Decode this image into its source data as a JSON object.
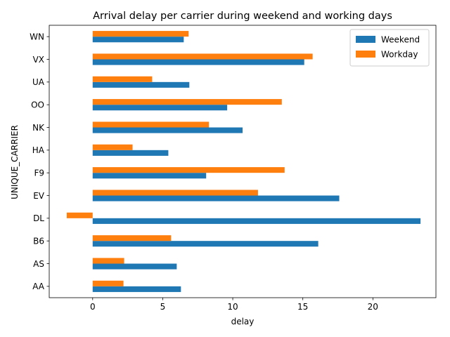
{
  "chart_data": {
    "type": "bar",
    "orientation": "horizontal",
    "title": "Arrival delay per carrier during weekend and working days",
    "xlabel": "delay",
    "ylabel": "UNIQUE_CARRIER",
    "categories": [
      "AA",
      "AS",
      "B6",
      "DL",
      "EV",
      "F9",
      "HA",
      "NK",
      "OO",
      "UA",
      "VX",
      "WN"
    ],
    "series": [
      {
        "name": "Weekend",
        "color": "#1f77b4",
        "values": [
          6.3,
          6.0,
          16.1,
          23.4,
          17.6,
          8.1,
          5.4,
          10.7,
          9.6,
          6.9,
          15.1,
          6.5
        ]
      },
      {
        "name": "Workday",
        "color": "#ff7f0e",
        "values": [
          2.2,
          2.25,
          5.6,
          -1.85,
          11.8,
          13.7,
          2.85,
          8.3,
          13.5,
          4.25,
          15.7,
          6.85
        ]
      }
    ],
    "xlim": [
      -3.1,
      24.5
    ],
    "xticks": [
      0,
      5,
      10,
      15,
      20
    ],
    "grid": false,
    "legend_position": "top-right"
  }
}
